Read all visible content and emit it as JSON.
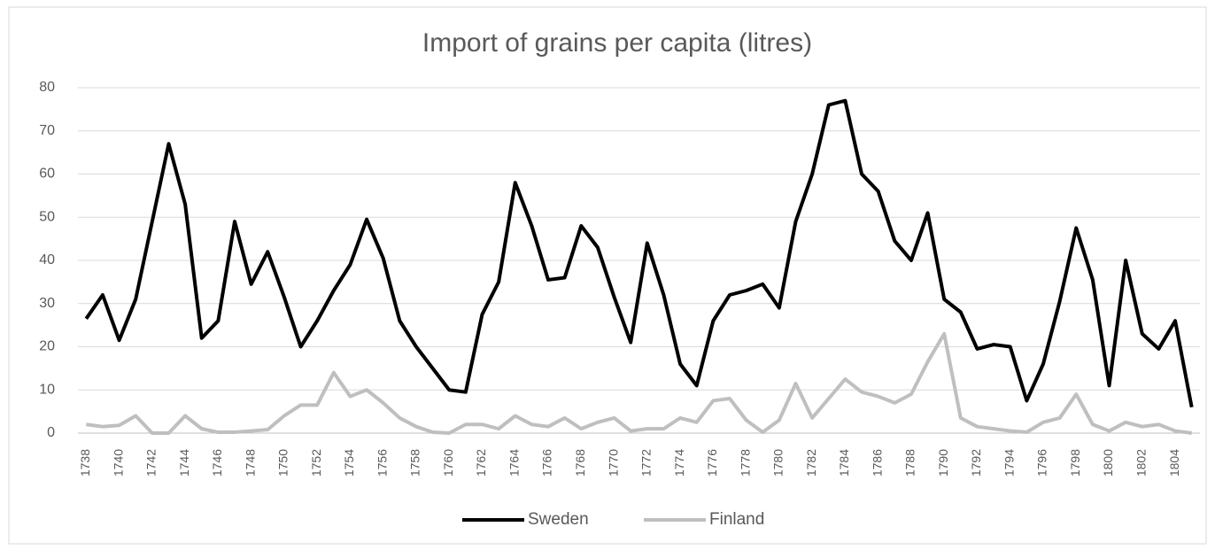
{
  "chart_data": {
    "type": "line",
    "title": "Import of grains per capita (litres)",
    "categories": [
      "1738",
      null,
      "1740",
      null,
      "1742",
      null,
      "1744",
      null,
      "1746",
      null,
      "1748",
      null,
      "1750",
      null,
      "1752",
      null,
      "1754",
      null,
      "1756",
      null,
      "1758",
      null,
      "1760",
      null,
      "1762",
      null,
      "1764",
      null,
      "1766",
      null,
      "1768",
      null,
      "1770",
      null,
      "1772",
      null,
      "1774",
      null,
      "1776",
      null,
      "1778",
      null,
      "1780",
      null,
      "1782",
      null,
      "1784",
      null,
      "1786",
      null,
      "1788",
      null,
      "1790",
      null,
      "1792",
      null,
      "1794",
      null,
      "1796",
      null,
      "1798",
      null,
      "1800",
      null,
      "1802",
      null,
      "1804",
      null
    ],
    "series": [
      {
        "name": "Sweden",
        "color": "#000000",
        "values": [
          26.5,
          32,
          21.5,
          31,
          49,
          67,
          53,
          22,
          26,
          49,
          34.5,
          42,
          31.5,
          20,
          26,
          33,
          39,
          49.5,
          40.5,
          26,
          20,
          15,
          10,
          9.5,
          27.5,
          35,
          58,
          48,
          35.5,
          36,
          48,
          43,
          31.5,
          21,
          44,
          32,
          16,
          11,
          26,
          32,
          33,
          34.5,
          29,
          49,
          60,
          76,
          77,
          60,
          56,
          44.5,
          40,
          51,
          31,
          28,
          19.5,
          20.5,
          20,
          7.5,
          16,
          30.5,
          47.5,
          35.5,
          11,
          40,
          23,
          19.5,
          26,
          6
        ]
      },
      {
        "name": "Finland",
        "color": "#bfbfbf",
        "values": [
          2,
          1.5,
          1.8,
          4,
          0,
          0,
          4,
          1,
          0.2,
          0.2,
          0.5,
          0.8,
          4,
          6.5,
          6.5,
          14,
          8.5,
          10,
          7,
          3.5,
          1.5,
          0.2,
          0,
          2,
          2,
          1,
          4,
          2,
          1.5,
          3.5,
          1,
          2.5,
          3.5,
          0.5,
          1,
          1,
          3.5,
          2.5,
          7.5,
          8,
          3,
          0.2,
          3,
          11.5,
          3.5,
          8,
          12.5,
          9.5,
          8.5,
          7,
          9,
          16.5,
          23,
          3.5,
          1.5,
          1,
          0.5,
          0.2,
          2.5,
          3.5,
          9,
          2,
          0.5,
          2.5,
          1.5,
          2,
          0.5,
          0
        ]
      }
    ],
    "ylim": [
      0,
      80
    ],
    "yticks": [
      0,
      10,
      20,
      30,
      40,
      50,
      60,
      70,
      80
    ],
    "grid": true,
    "legend": "bottom"
  }
}
